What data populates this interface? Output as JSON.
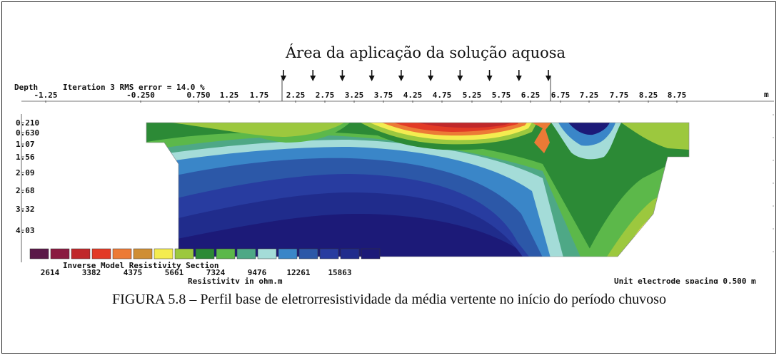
{
  "annotation": {
    "label": "Área da aplicação da solução aquosa"
  },
  "header": {
    "depth_label": "Depth",
    "iteration_label": "Iteration 3 RMS error = 14.0 %",
    "units_label": "m"
  },
  "chart_data": {
    "type": "heatmap",
    "title": "Inverse Model Resistivity Section",
    "x_ticks": [
      "-1.25",
      "-0.250",
      "0.750",
      "1.25",
      "1.75",
      "2.25",
      "2.75",
      "3.25",
      "3.75",
      "4.25",
      "4.75",
      "5.25",
      "5.75",
      "6.25",
      "6.75",
      "7.25",
      "7.75",
      "8.25",
      "8.75"
    ],
    "y_ticks": [
      "0.210",
      "0.630",
      "1.07",
      "1.56",
      "2.09",
      "2.68",
      "3.32",
      "4.03"
    ],
    "x_units": "m",
    "y_label": "Depth",
    "application_area_x": [
      2.0,
      6.0
    ],
    "legend": {
      "colors": [
        "#5a1848",
        "#8a1a40",
        "#c0282a",
        "#e23a26",
        "#ec7a36",
        "#cf8e34",
        "#f4ec50",
        "#9cc83e",
        "#2c8a36",
        "#5cb84a",
        "#4ea886",
        "#a4dcd8",
        "#3a86c8",
        "#2c58a8",
        "#283ca0",
        "#202c8c",
        "#1c1a78"
      ],
      "labels": [
        "2614",
        "3382",
        "4375",
        "5661",
        "7324",
        "9476",
        "12261",
        "15863"
      ],
      "units_label": "Resistivity in ohm.m"
    },
    "electrode_spacing_label": "Unit electrode spacing 0.500 m"
  },
  "caption": {
    "text": "FIGURA 5.8 – Perfil base de eletrorresistividade da média vertente no início do período chuvoso"
  }
}
